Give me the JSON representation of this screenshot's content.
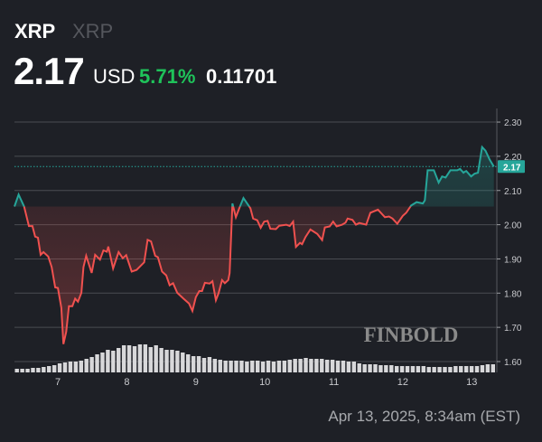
{
  "header": {
    "symbol": "XRP",
    "name": "XRP",
    "price": "2.17",
    "currency": "USD",
    "change_pct": "5.71%",
    "change_abs": "0.11701",
    "change_color": "#1fc35a"
  },
  "footer": {
    "timestamp": "Apr 13, 2025, 8:34am (EST)"
  },
  "watermark": "FINBOLD",
  "chart_data": {
    "type": "line",
    "title": "",
    "xlabel": "",
    "ylabel": "",
    "x_ticks": [
      7,
      8,
      9,
      10,
      11,
      12,
      13
    ],
    "y_ticks": [
      "1.60",
      "1.70",
      "1.80",
      "1.90",
      "2.00",
      "2.10",
      "2.20",
      "2.30"
    ],
    "ylim": [
      1.57,
      2.33
    ],
    "xlim": [
      6.37,
      13.35
    ],
    "grid": true,
    "baseline": 2.053,
    "current_price_label": "2.17",
    "colors": {
      "up": "#26a69a",
      "down": "#f0514f",
      "tag": "#26a69a"
    },
    "series": [
      {
        "x": [
          6.37,
          6.43,
          6.51,
          6.58,
          6.63,
          6.67,
          6.71,
          6.75,
          6.79,
          6.86,
          6.91,
          6.96,
          7.0,
          7.05,
          7.08,
          7.12,
          7.16,
          7.21,
          7.25,
          7.29,
          7.34,
          7.37,
          7.41,
          7.49,
          7.54,
          7.61,
          7.66,
          7.71,
          7.73,
          7.8,
          7.88,
          7.94,
          7.99,
          8.07,
          8.14,
          8.25,
          8.3,
          8.35,
          8.41,
          8.45,
          8.51,
          8.57,
          8.62,
          8.67,
          8.73,
          8.82,
          8.9,
          8.95,
          9.0,
          9.05,
          9.09,
          9.13,
          9.2,
          9.24,
          9.29,
          9.33,
          9.38,
          9.42,
          9.47,
          9.49,
          9.53,
          9.58,
          9.63,
          9.69,
          9.79,
          9.83,
          9.89,
          9.94,
          9.99,
          10.04,
          10.08,
          10.16,
          10.21,
          10.31,
          10.36,
          10.41,
          10.45,
          10.51,
          10.54,
          10.59,
          10.66,
          10.76,
          10.83,
          10.87,
          10.94,
          10.99,
          11.04,
          11.12,
          11.17,
          11.2,
          11.27,
          11.32,
          11.37,
          11.47,
          11.53,
          11.64,
          11.74,
          11.8,
          11.85,
          11.92,
          12.0,
          12.05,
          12.12,
          12.2,
          12.29,
          12.32,
          12.36,
          12.45,
          12.52,
          12.57,
          12.62,
          12.69,
          12.79,
          12.83,
          12.88,
          12.9,
          12.92,
          12.99,
          13.04,
          13.09,
          13.15,
          13.2,
          13.26,
          13.32
        ],
        "y": [
          2.053,
          2.088,
          2.053,
          1.996,
          1.996,
          1.965,
          1.962,
          1.912,
          1.92,
          1.907,
          1.876,
          1.817,
          1.815,
          1.757,
          1.651,
          1.687,
          1.762,
          1.762,
          1.784,
          1.775,
          1.801,
          1.876,
          1.909,
          1.859,
          1.912,
          1.898,
          1.925,
          1.921,
          1.936,
          1.872,
          1.92,
          1.902,
          1.911,
          1.863,
          1.868,
          1.89,
          1.956,
          1.951,
          1.909,
          1.905,
          1.863,
          1.852,
          1.823,
          1.829,
          1.801,
          1.784,
          1.77,
          1.748,
          1.788,
          1.806,
          1.806,
          1.83,
          1.828,
          1.835,
          1.779,
          1.8,
          1.838,
          1.829,
          1.838,
          1.859,
          2.062,
          2.022,
          2.048,
          2.078,
          2.048,
          2.018,
          2.013,
          1.991,
          2.009,
          2.011,
          1.988,
          1.987,
          1.997,
          2.0,
          1.996,
          2.009,
          1.935,
          1.947,
          1.943,
          1.964,
          1.986,
          1.973,
          1.955,
          1.992,
          1.995,
          2.009,
          1.995,
          2.0,
          2.006,
          2.018,
          2.014,
          2.0,
          2.005,
          2.0,
          2.035,
          2.044,
          2.022,
          2.024,
          2.018,
          2.003,
          2.026,
          2.035,
          2.056,
          2.066,
          2.062,
          2.071,
          2.159,
          2.159,
          2.123,
          2.141,
          2.138,
          2.159,
          2.159,
          2.163,
          2.152,
          2.155,
          2.157,
          2.141,
          2.149,
          2.152,
          2.227,
          2.216,
          2.19,
          2.17
        ]
      }
    ],
    "volume": [
      4,
      4,
      4,
      5,
      5,
      6,
      7,
      8,
      10,
      11,
      12,
      12,
      13,
      15,
      17,
      20,
      22,
      25,
      24,
      27,
      30,
      30,
      29,
      31,
      31,
      28,
      30,
      27,
      25,
      25,
      24,
      22,
      20,
      18,
      18,
      16,
      17,
      15,
      14,
      13,
      13,
      13,
      13,
      12,
      13,
      13,
      12,
      13,
      12,
      13,
      13,
      14,
      15,
      15,
      16,
      15,
      15,
      15,
      14,
      14,
      13,
      13,
      12,
      12,
      10,
      9,
      9,
      9,
      8,
      8,
      8,
      7,
      7,
      7,
      7,
      7,
      7,
      6,
      6,
      6,
      6,
      6,
      7,
      7,
      7,
      7,
      7,
      8,
      9,
      9
    ]
  }
}
